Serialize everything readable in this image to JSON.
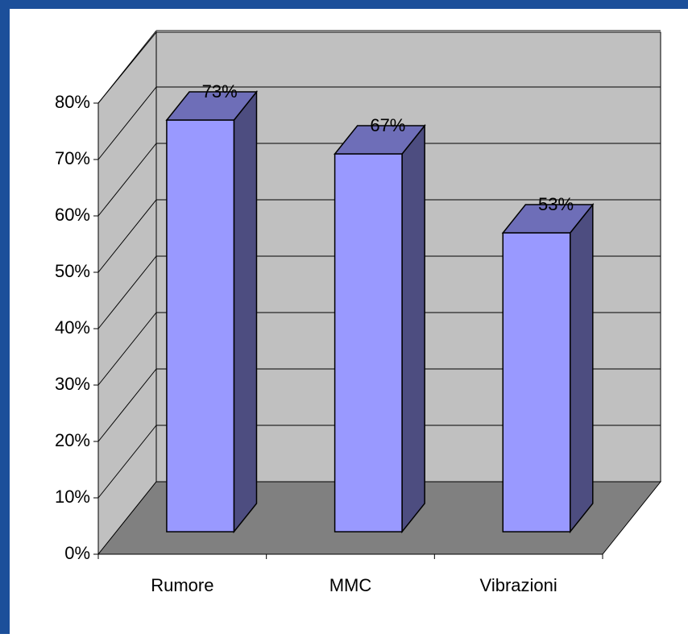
{
  "chart_data": {
    "type": "bar3d",
    "categories": [
      "Rumore",
      "MMC",
      "Vibrazioni"
    ],
    "values": [
      73,
      67,
      53
    ],
    "value_labels": [
      "73%",
      "67%",
      "53%"
    ],
    "color": "#9999ff",
    "ylim": [
      0,
      80
    ],
    "yticks": [
      {
        "value": 0,
        "label": "0%"
      },
      {
        "value": 10,
        "label": "10%"
      },
      {
        "value": 20,
        "label": "20%"
      },
      {
        "value": 30,
        "label": "30%"
      },
      {
        "value": 40,
        "label": "40%"
      },
      {
        "value": 50,
        "label": "50%"
      },
      {
        "value": 60,
        "label": "60%"
      },
      {
        "value": 70,
        "label": "70%"
      },
      {
        "value": 80,
        "label": "80%"
      }
    ],
    "grid": true
  }
}
